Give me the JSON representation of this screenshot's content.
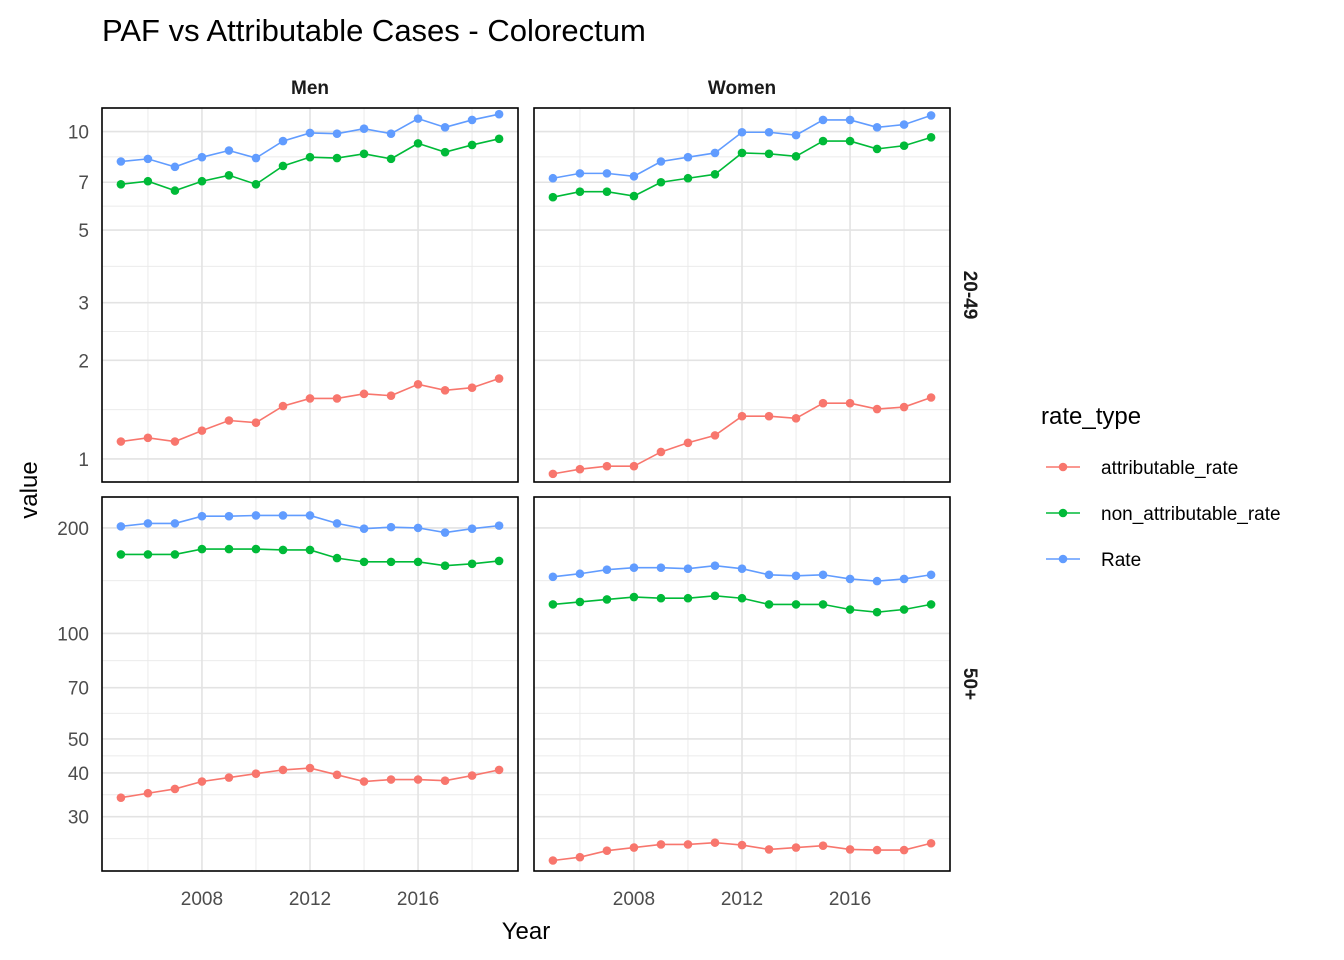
{
  "chart_data": {
    "type": "line",
    "title": "PAF vs Attributable Cases - Colorectum",
    "xlabel": "Year",
    "ylabel": "value",
    "y_scale": "log",
    "grid": true,
    "legend_title": "rate_type",
    "legend_position": "right",
    "x_ticks": [
      2008,
      2012,
      2016
    ],
    "x": [
      2005,
      2006,
      2007,
      2008,
      2009,
      2010,
      2011,
      2012,
      2013,
      2014,
      2015,
      2016,
      2017,
      2018,
      2019
    ],
    "col_labels": [
      "Men",
      "Women"
    ],
    "row_labels": [
      "20-49",
      "50+"
    ],
    "series_info": [
      {
        "name": "attributable_rate",
        "color": "#F8766D"
      },
      {
        "name": "non_attributable_rate",
        "color": "#00BA38"
      },
      {
        "name": "Rate",
        "color": "#619CFF"
      }
    ],
    "rows": [
      {
        "label": "20-49",
        "ylim": [
          0.85,
          11.8
        ],
        "y_ticks": [
          1,
          2,
          3,
          5,
          7,
          10
        ],
        "panels": [
          {
            "col": "Men",
            "series": [
              {
                "name": "attributable_rate",
                "values": [
                  1.13,
                  1.16,
                  1.13,
                  1.22,
                  1.31,
                  1.29,
                  1.45,
                  1.53,
                  1.53,
                  1.58,
                  1.56,
                  1.69,
                  1.62,
                  1.65,
                  1.76
                ]
              },
              {
                "name": "non_attributable_rate",
                "values": [
                  6.9,
                  7.05,
                  6.6,
                  7.05,
                  7.35,
                  6.9,
                  7.85,
                  8.35,
                  8.3,
                  8.55,
                  8.25,
                  9.2,
                  8.65,
                  9.1,
                  9.5
                ]
              },
              {
                "name": "Rate",
                "values": [
                  8.1,
                  8.25,
                  7.8,
                  8.35,
                  8.75,
                  8.3,
                  9.35,
                  9.9,
                  9.85,
                  10.2,
                  9.85,
                  10.95,
                  10.3,
                  10.85,
                  11.3
                ]
              }
            ]
          },
          {
            "col": "Women",
            "series": [
              {
                "name": "attributable_rate",
                "values": [
                  0.9,
                  0.93,
                  0.95,
                  0.95,
                  1.05,
                  1.12,
                  1.18,
                  1.35,
                  1.35,
                  1.33,
                  1.48,
                  1.48,
                  1.42,
                  1.44,
                  1.54
                ]
              },
              {
                "name": "non_attributable_rate",
                "values": [
                  6.3,
                  6.55,
                  6.55,
                  6.35,
                  7.0,
                  7.2,
                  7.4,
                  8.6,
                  8.55,
                  8.4,
                  9.35,
                  9.35,
                  8.85,
                  9.05,
                  9.6
                ]
              },
              {
                "name": "Rate",
                "values": [
                  7.2,
                  7.45,
                  7.45,
                  7.3,
                  8.1,
                  8.35,
                  8.6,
                  9.95,
                  9.95,
                  9.75,
                  10.85,
                  10.85,
                  10.3,
                  10.5,
                  11.2
                ]
              }
            ]
          }
        ]
      },
      {
        "label": "50+",
        "ylim": [
          21,
          245
        ],
        "y_ticks": [
          30,
          40,
          50,
          70,
          100,
          200
        ],
        "panels": [
          {
            "col": "Men",
            "series": [
              {
                "name": "attributable_rate",
                "values": [
                  34.0,
                  35.0,
                  36.0,
                  37.8,
                  38.8,
                  39.8,
                  40.8,
                  41.3,
                  39.5,
                  37.8,
                  38.3,
                  38.3,
                  38.0,
                  39.3,
                  40.8
                ]
              },
              {
                "name": "non_attributable_rate",
                "values": [
                  168,
                  168,
                  168,
                  174,
                  174,
                  174,
                  173,
                  173,
                  164,
                  160,
                  160,
                  160,
                  156,
                  158,
                  161
                ]
              },
              {
                "name": "Rate",
                "values": [
                  202,
                  206,
                  206,
                  216,
                  216,
                  217,
                  217,
                  217,
                  206,
                  199,
                  201,
                  200,
                  194,
                  199,
                  203
                ]
              }
            ]
          },
          {
            "col": "Women",
            "series": [
              {
                "name": "attributable_rate",
                "values": [
                  22.5,
                  23.0,
                  24.0,
                  24.5,
                  25.0,
                  25.0,
                  25.3,
                  24.9,
                  24.2,
                  24.5,
                  24.8,
                  24.2,
                  24.1,
                  24.1,
                  25.2
                ]
              },
              {
                "name": "non_attributable_rate",
                "values": [
                  121,
                  123,
                  125,
                  127,
                  126,
                  126,
                  128,
                  126,
                  121,
                  121,
                  121,
                  117,
                  115,
                  117,
                  121
                ]
              },
              {
                "name": "Rate",
                "values": [
                  145,
                  148,
                  152,
                  154,
                  154,
                  153,
                  156,
                  153,
                  147,
                  146,
                  147,
                  143,
                  141,
                  143,
                  147
                ]
              }
            ]
          }
        ]
      }
    ]
  }
}
